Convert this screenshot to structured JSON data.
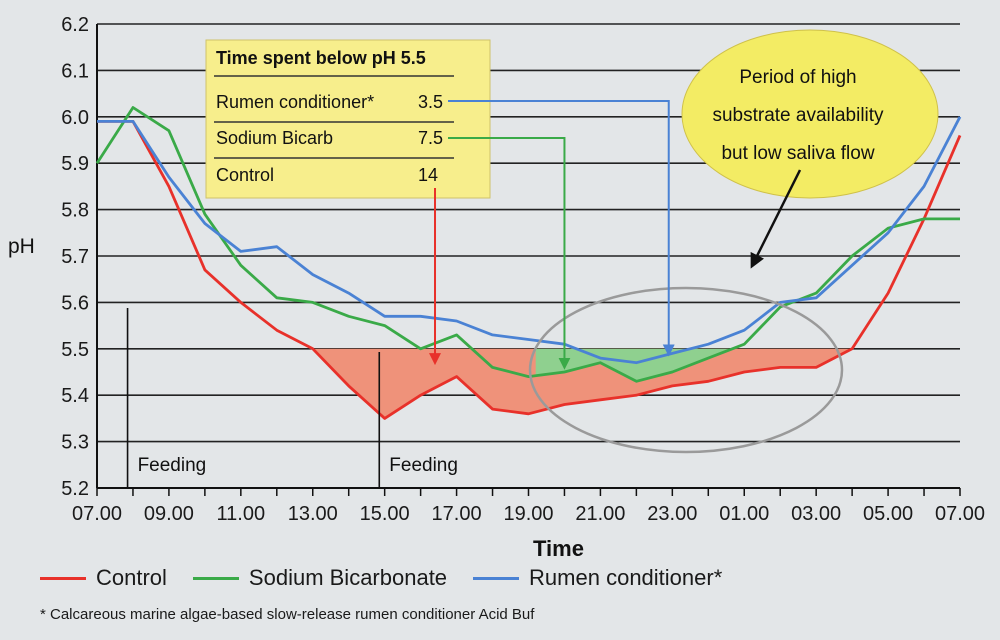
{
  "chart_data": {
    "type": "line",
    "ylabel": "pH",
    "xlabel": "Time",
    "ylim": [
      5.2,
      6.2
    ],
    "yticks": [
      "5.2",
      "5.3",
      "5.4",
      "5.5",
      "5.6",
      "5.7",
      "5.8",
      "5.9",
      "6.0",
      "6.1",
      "6.2"
    ],
    "grid": true,
    "x_ticks": [
      "07.00",
      "09.00",
      "11.00",
      "13.00",
      "15.00",
      "17.00",
      "19.00",
      "21.00",
      "23.00",
      "01.00",
      "03.00",
      "05.00",
      "07.00"
    ],
    "threshold": 5.5,
    "series": [
      {
        "name": "Control",
        "color": "#e8312a",
        "x": [
          0,
          1,
          2,
          3,
          4,
          5,
          6,
          7,
          8,
          9,
          10,
          11,
          12,
          13,
          14,
          15,
          16,
          17,
          18,
          19,
          20,
          21,
          22,
          23,
          24
        ],
        "values": [
          5.99,
          5.99,
          5.85,
          5.67,
          5.6,
          5.54,
          5.5,
          5.42,
          5.35,
          5.4,
          5.44,
          5.37,
          5.36,
          5.38,
          5.39,
          5.4,
          5.42,
          5.43,
          5.45,
          5.46,
          5.46,
          5.5,
          5.62,
          5.78,
          5.96
        ]
      },
      {
        "name": "Sodium Bicarbonate",
        "color": "#3aaa48",
        "x": [
          0,
          1,
          2,
          3,
          4,
          5,
          6,
          7,
          8,
          9,
          10,
          11,
          12,
          13,
          14,
          15,
          16,
          17,
          18,
          19,
          20,
          21,
          22,
          23,
          24
        ],
        "values": [
          5.9,
          6.02,
          5.97,
          5.79,
          5.68,
          5.61,
          5.6,
          5.57,
          5.55,
          5.5,
          5.53,
          5.46,
          5.44,
          5.45,
          5.47,
          5.43,
          5.45,
          5.48,
          5.51,
          5.59,
          5.62,
          5.7,
          5.76,
          5.78,
          5.78
        ]
      },
      {
        "name": "Rumen conditioner*",
        "color": "#4a82d4",
        "x": [
          0,
          1,
          2,
          3,
          4,
          5,
          6,
          7,
          8,
          9,
          10,
          11,
          12,
          13,
          14,
          15,
          16,
          17,
          18,
          19,
          20,
          21,
          22,
          23,
          24
        ],
        "values": [
          5.99,
          5.99,
          5.87,
          5.77,
          5.71,
          5.72,
          5.66,
          5.62,
          5.57,
          5.57,
          5.56,
          5.53,
          5.52,
          5.51,
          5.48,
          5.47,
          5.49,
          5.51,
          5.54,
          5.6,
          5.61,
          5.68,
          5.75,
          5.85,
          6.0
        ]
      }
    ],
    "feeding": [
      {
        "x": 0.85,
        "label": "Feeding"
      },
      {
        "x": 7.85,
        "label": "Feeding"
      }
    ],
    "table": {
      "title": "Time spent below pH 5.5",
      "rows": [
        {
          "label": "Rumen conditioner*",
          "value": "3.5",
          "color": "#4a82d4",
          "arrow_target_x": 15.9
        },
        {
          "label": "Sodium Bicarb",
          "value": "7.5",
          "color": "#3aaa48",
          "arrow_target_x": 13.0
        },
        {
          "label": "Control",
          "value": "14",
          "color": "#e8312a",
          "arrow_target_x": 9.4
        }
      ]
    },
    "bubble": {
      "lines": [
        "Period of high",
        "substrate availability",
        "but low saliva flow"
      ]
    }
  },
  "legend": [
    {
      "name": "Control",
      "color": "#e8312a"
    },
    {
      "name": "Sodium Bicarbonate",
      "color": "#3aaa48"
    },
    {
      "name": "Rumen conditioner*",
      "color": "#4a82d4"
    }
  ],
  "footnote": "* Calcareous marine algae-based slow-release rumen conditioner Acid Buf"
}
